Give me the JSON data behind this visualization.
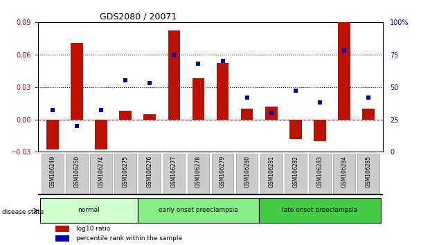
{
  "title": "GDS2080 / 20071",
  "samples": [
    "GSM106249",
    "GSM106250",
    "GSM106274",
    "GSM106275",
    "GSM106276",
    "GSM106277",
    "GSM106278",
    "GSM106279",
    "GSM106280",
    "GSM106281",
    "GSM106282",
    "GSM106283",
    "GSM106284",
    "GSM106285"
  ],
  "log10_ratio": [
    -0.028,
    0.071,
    -0.028,
    0.008,
    0.005,
    0.082,
    0.038,
    0.052,
    0.01,
    0.012,
    -0.018,
    -0.02,
    0.09,
    0.01
  ],
  "percentile_rank": [
    32,
    20,
    32,
    55,
    53,
    75,
    68,
    70,
    42,
    30,
    47,
    38,
    78,
    42
  ],
  "groups": [
    {
      "label": "normal",
      "start": 0,
      "end": 4,
      "color": "#ccffcc"
    },
    {
      "label": "early onset preeclampsia",
      "start": 4,
      "end": 9,
      "color": "#88ee88"
    },
    {
      "label": "late onset preeclampsia",
      "start": 9,
      "end": 14,
      "color": "#44cc44"
    }
  ],
  "ylim_left": [
    -0.03,
    0.09
  ],
  "ylim_right": [
    0,
    100
  ],
  "yticks_left": [
    -0.03,
    0,
    0.03,
    0.06,
    0.09
  ],
  "yticks_right": [
    0,
    25,
    50,
    75,
    100
  ],
  "ytick_labels_right": [
    "0",
    "25",
    "50",
    "75",
    "100%"
  ],
  "hlines": [
    0.03,
    0.06
  ],
  "bar_color": "#bb1100",
  "scatter_color": "#0000bb",
  "zero_line_color": "#cc0000",
  "background_color": "#ffffff",
  "tick_label_color_left": "#cc0000",
  "tick_label_color_right": "#0000cc",
  "legend_bar_label": "log10 ratio",
  "legend_scatter_label": "percentile rank within the sample",
  "disease_state_label": "disease state",
  "bar_width": 0.5,
  "scatter_size": 18,
  "xtick_bg_color": "#cccccc",
  "group_border_color": "#000000",
  "title_fontsize": 9,
  "axis_fontsize": 7,
  "label_fontsize": 7
}
